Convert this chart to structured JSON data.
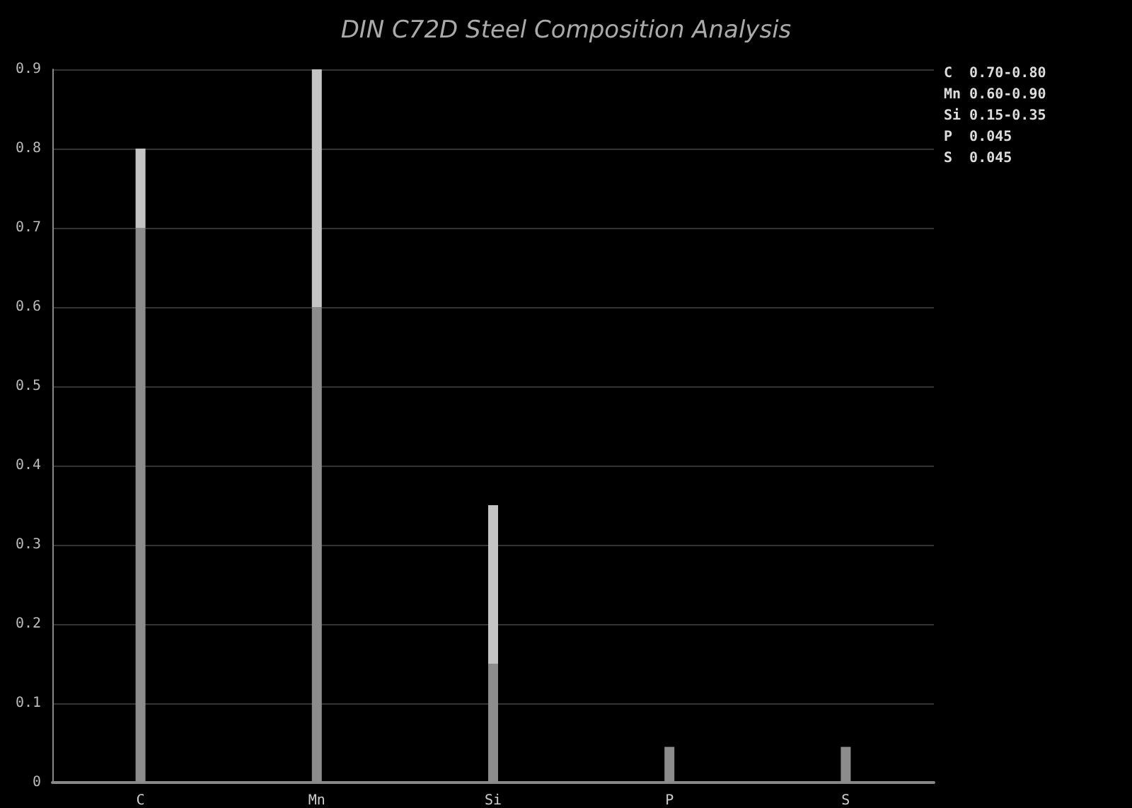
{
  "chart_data": {
    "type": "bar",
    "title": "DIN C72D Steel Composition Analysis",
    "categories": [
      "C",
      "Mn",
      "Si",
      "P",
      "S"
    ],
    "stacked": true,
    "series": [
      {
        "color": "#8c8c8c",
        "values": [
          0.7,
          0.6,
          0.15,
          0.045,
          0.045
        ]
      },
      {
        "color": "#c4c4c4",
        "values": [
          0.1,
          0.3,
          0.2,
          null,
          null
        ]
      }
    ],
    "ylim": [
      0,
      0.9
    ],
    "yticks": [
      0,
      0.1,
      0.2,
      0.3,
      0.4,
      0.5,
      0.6,
      0.7,
      0.8,
      0.9
    ],
    "grid": "y",
    "annotations": [
      "C  0.70-0.80",
      "Mn 0.60-0.90",
      "Si 0.15-0.35",
      "P  0.045",
      "S  0.045"
    ]
  }
}
